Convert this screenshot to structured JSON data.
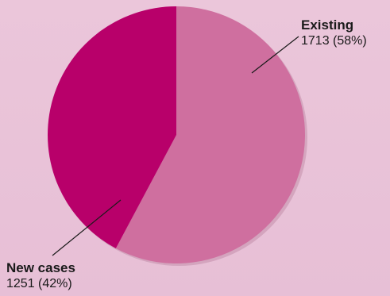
{
  "chart_data": {
    "type": "pie",
    "title": "",
    "slices": [
      {
        "label": "Existing",
        "value": 1713,
        "percent": "58%",
        "value_text": "1713 (58%)",
        "color": "#cf6f9f"
      },
      {
        "label": "New cases",
        "value": 1251,
        "percent": "42%",
        "value_text": "1251 (42%)",
        "color": "#b8006a"
      }
    ],
    "legend": "none",
    "labels": "outside-with-leader-lines"
  },
  "colors": {
    "background": "#e9c2d8",
    "leader_line": "#1a1a1a"
  }
}
